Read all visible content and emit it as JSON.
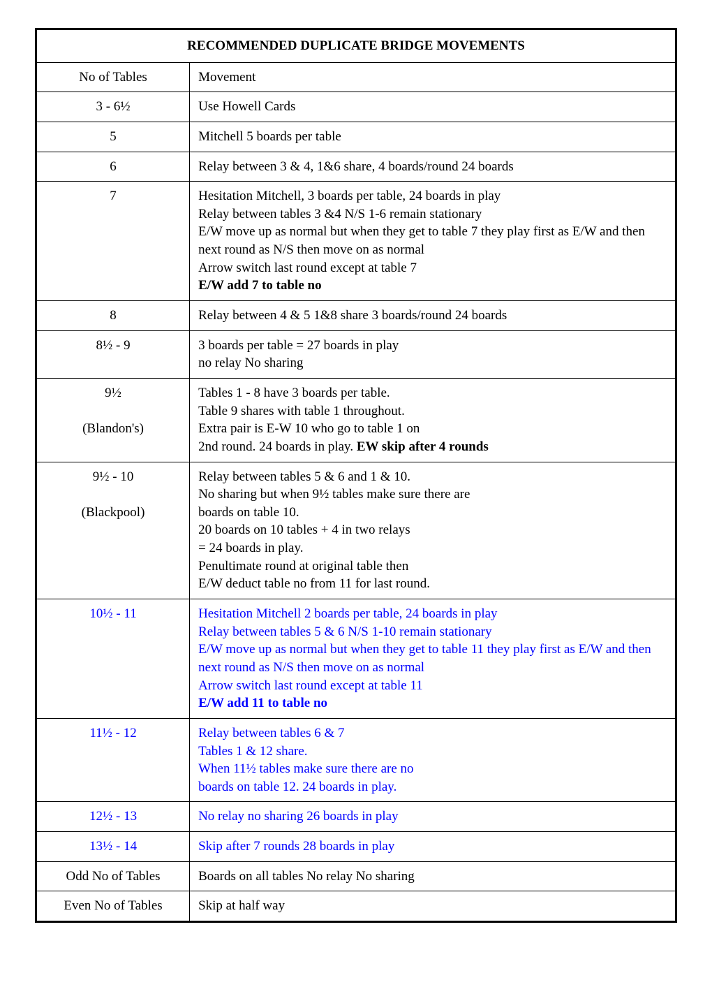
{
  "title": "RECOMMENDED DUPLICATE BRIDGE MOVEMENTS",
  "header": {
    "left": "No of Tables",
    "right": "Movement"
  },
  "rows": [
    {
      "left": "3 - 6½",
      "right": "Use Howell Cards",
      "blue": false
    },
    {
      "left": "5",
      "right": "Mitchell   5 boards per table",
      "blue": false
    },
    {
      "left": "6",
      "right": "Relay between 3 & 4, 1&6 share, 4 boards/round 24 boards",
      "blue": false
    },
    {
      "left": "7",
      "pieces": [
        {
          "t": "Hesitation Mitchell, 3 boards per table, 24 boards in play",
          "br": true
        },
        {
          "t": "Relay between tables 3 &4  N/S 1-6 remain stationary",
          "br": true
        },
        {
          "t": "E/W move up as normal but when they get to table 7 they play first as E/W and then next round as N/S then move on as normal",
          "br": true
        },
        {
          "t": "Arrow switch last round except at table 7",
          "br": true
        },
        {
          "t": "E/W add 7 to table no",
          "bold": true
        }
      ],
      "blue": false
    },
    {
      "left": "8",
      "right": "Relay between 4 & 5  1&8 share  3 boards/round 24 boards",
      "blue": false
    },
    {
      "left": "8½ - 9",
      "pieces": [
        {
          "t": "3 boards per table = 27 boards in play",
          "br": true
        },
        {
          "t": "no relay  No sharing"
        }
      ],
      "blue": false
    },
    {
      "left_lines": [
        "9½",
        "",
        "(Blandon's)"
      ],
      "pieces": [
        {
          "t": "Tables 1 - 8 have 3 boards per table.",
          "br": true
        },
        {
          "t": "Table 9 shares with table 1 throughout.",
          "br": true
        },
        {
          "t": "Extra pair is E-W 10 who go to table 1 on",
          "br": true
        },
        {
          "t": "2nd round.  24 boards in play.      "
        },
        {
          "t": "EW skip after 4 rounds",
          "bold": true
        }
      ],
      "blue": false
    },
    {
      "left_lines": [
        "9½ - 10",
        "",
        "(Blackpool)"
      ],
      "pieces": [
        {
          "t": "Relay between tables 5 & 6 and 1 & 10.",
          "br": true
        },
        {
          "t": "No sharing but when 9½ tables make sure there are",
          "br": true
        },
        {
          "t": "boards on table 10.",
          "br": true
        },
        {
          "t": "20 boards on 10 tables + 4 in two relays",
          "br": true
        },
        {
          "t": "= 24 boards in play.",
          "br": true
        },
        {
          "t": "Penultimate round at original table then",
          "br": true
        },
        {
          "t": "E/W deduct table no from 11 for last round."
        }
      ],
      "blue": false
    },
    {
      "left": "10½ - 11",
      "pieces": [
        {
          "t": "Hesitation Mitchell 2 boards per table, 24 boards in play",
          "br": true
        },
        {
          "t": "Relay between tables 5 & 6   N/S 1-10 remain stationary",
          "br": true
        },
        {
          "t": "E/W move up as normal but when they get to table 11 they play first as E/W and then next round as N/S then move on as normal",
          "br": true
        },
        {
          "t": "Arrow switch last round except at table 11",
          "br": true
        },
        {
          "t": "E/W add 11 to table no",
          "bold": true
        }
      ],
      "blue": true
    },
    {
      "left": "11½  - 12",
      "pieces": [
        {
          "t": "Relay between tables 6 & 7",
          "br": true
        },
        {
          "t": "Tables 1 & 12 share.",
          "br": true
        },
        {
          "t": "When 11½ tables make sure there are no",
          "br": true
        },
        {
          "t": "boards on table 12.  24 boards in play."
        }
      ],
      "blue": true
    },
    {
      "left": "12½ - 13",
      "right": "No relay  no sharing  26 boards in play",
      "blue": true
    },
    {
      "left": "13½ - 14",
      "right": "Skip after 7 rounds  28 boards in play",
      "blue": true
    },
    {
      "left": "Odd No of Tables",
      "right": "Boards on all tables No relay  No sharing",
      "blue": false
    },
    {
      "left": "Even No of Tables",
      "right": "Skip at half way",
      "blue": false
    }
  ]
}
